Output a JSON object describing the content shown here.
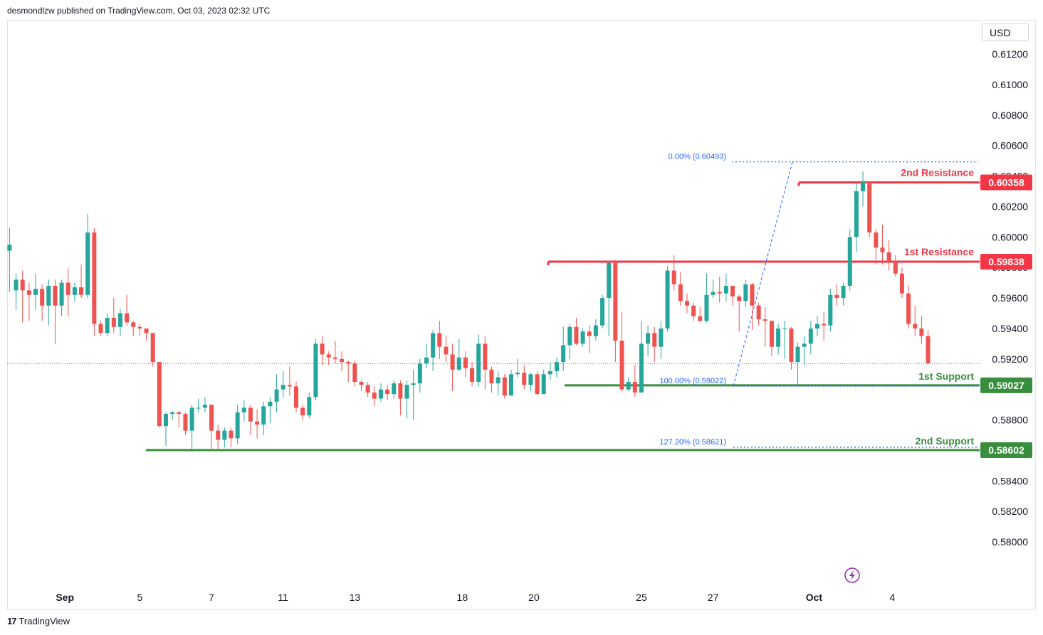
{
  "header": {
    "published": "desmondlzw published on TradingView.com, Oct 03, 2023 02:32 UTC"
  },
  "footer": {
    "brand": "TradingView",
    "logo_glyph": "17"
  },
  "currency": "USD",
  "colors": {
    "up": "#26a69a",
    "down": "#ef5350",
    "resistance": "#f23645",
    "support": "#388e3c",
    "fib": "#2962ff",
    "current": "#f23645"
  },
  "chart_data": {
    "type": "candlestick",
    "title": "",
    "xlabel": "",
    "ylabel": "",
    "ylim": [
      0.5787,
      0.6127
    ],
    "grid": false,
    "y_ticks": [
      "0.61200",
      "0.61000",
      "0.60800",
      "0.60600",
      "0.60400",
      "0.60200",
      "0.60000",
      "0.59800",
      "0.59600",
      "0.59400",
      "0.59200",
      "0.59000",
      "0.58800",
      "0.58600",
      "0.58400",
      "0.58200",
      "0.58000"
    ],
    "x_ticks": [
      {
        "label": "Sep",
        "bar": 8.5,
        "bold": true
      },
      {
        "label": "5",
        "bar": 20
      },
      {
        "label": "7",
        "bar": 31
      },
      {
        "label": "11",
        "bar": 42
      },
      {
        "label": "13",
        "bar": 53
      },
      {
        "label": "18",
        "bar": 69.5
      },
      {
        "label": "20",
        "bar": 80.5
      },
      {
        "label": "25",
        "bar": 97
      },
      {
        "label": "27",
        "bar": 108
      },
      {
        "label": "Oct",
        "bar": 123.5,
        "bold": true
      },
      {
        "label": "4",
        "bar": 135.5
      }
    ],
    "current_price": 0.5917,
    "candles": [
      [
        0.5991,
        0.5995,
        0.6006,
        0.5964
      ],
      [
        0.5965,
        0.5972,
        0.5976,
        0.5952
      ],
      [
        0.5972,
        0.5965,
        0.5978,
        0.5944
      ],
      [
        0.5965,
        0.5962,
        0.597,
        0.5945
      ],
      [
        0.5962,
        0.5966,
        0.5976,
        0.5952
      ],
      [
        0.5966,
        0.5955,
        0.5969,
        0.5945
      ],
      [
        0.5955,
        0.5968,
        0.5972,
        0.5942
      ],
      [
        0.5968,
        0.5955,
        0.5972,
        0.593
      ],
      [
        0.5955,
        0.597,
        0.5972,
        0.5948
      ],
      [
        0.597,
        0.5962,
        0.598,
        0.5948
      ],
      [
        0.5962,
        0.5967,
        0.597,
        0.5958
      ],
      [
        0.5967,
        0.5962,
        0.5982,
        0.596
      ],
      [
        0.5962,
        0.6003,
        0.6015,
        0.596
      ],
      [
        0.6003,
        0.5943,
        0.6006,
        0.5935
      ],
      [
        0.5943,
        0.5937,
        0.5945,
        0.5935
      ],
      [
        0.5937,
        0.5947,
        0.595,
        0.5935
      ],
      [
        0.5947,
        0.5941,
        0.596,
        0.5937
      ],
      [
        0.5941,
        0.595,
        0.5953,
        0.5935
      ],
      [
        0.595,
        0.5944,
        0.5962,
        0.5942
      ],
      [
        0.5944,
        0.5941,
        0.5945,
        0.5935
      ],
      [
        0.5941,
        0.594,
        0.5943,
        0.5935
      ],
      [
        0.594,
        0.5937,
        0.594,
        0.5932
      ],
      [
        0.5937,
        0.5918,
        0.5937,
        0.5915
      ],
      [
        0.5918,
        0.5876,
        0.5918,
        0.5875
      ],
      [
        0.5876,
        0.5884,
        0.5885,
        0.5863
      ],
      [
        0.5884,
        0.5885,
        0.5886,
        0.588
      ],
      [
        0.5885,
        0.5884,
        0.5886,
        0.5875
      ],
      [
        0.5884,
        0.5873,
        0.5885,
        0.587
      ],
      [
        0.5873,
        0.5888,
        0.589,
        0.5861
      ],
      [
        0.5888,
        0.5888,
        0.5894,
        0.5885
      ],
      [
        0.5888,
        0.589,
        0.5895,
        0.5885
      ],
      [
        0.589,
        0.5873,
        0.589,
        0.586
      ],
      [
        0.5873,
        0.5867,
        0.5877,
        0.5861
      ],
      [
        0.5867,
        0.5873,
        0.5875,
        0.5862
      ],
      [
        0.5873,
        0.5868,
        0.5875,
        0.5862
      ],
      [
        0.5868,
        0.5885,
        0.589,
        0.5864
      ],
      [
        0.5885,
        0.5888,
        0.5893,
        0.5879
      ],
      [
        0.5888,
        0.5879,
        0.589,
        0.587
      ],
      [
        0.5879,
        0.5877,
        0.5887,
        0.5868
      ],
      [
        0.5877,
        0.5889,
        0.5892,
        0.587
      ],
      [
        0.5889,
        0.5892,
        0.5895,
        0.5878
      ],
      [
        0.5892,
        0.59,
        0.591,
        0.5885
      ],
      [
        0.59,
        0.5903,
        0.5912,
        0.5895
      ],
      [
        0.5903,
        0.5902,
        0.5915,
        0.5896
      ],
      [
        0.5902,
        0.5888,
        0.5905,
        0.5885
      ],
      [
        0.5888,
        0.5883,
        0.589,
        0.588
      ],
      [
        0.5883,
        0.5895,
        0.5898,
        0.5881
      ],
      [
        0.5895,
        0.593,
        0.5933,
        0.5893
      ],
      [
        0.593,
        0.5923,
        0.5935,
        0.5916
      ],
      [
        0.5923,
        0.5921,
        0.5925,
        0.5916
      ],
      [
        0.5921,
        0.592,
        0.5932,
        0.5917
      ],
      [
        0.592,
        0.5918,
        0.5925,
        0.5912
      ],
      [
        0.5918,
        0.5917,
        0.5919,
        0.5905
      ],
      [
        0.5917,
        0.5905,
        0.5919,
        0.5902
      ],
      [
        0.5905,
        0.5903,
        0.5906,
        0.5899
      ],
      [
        0.5903,
        0.5898,
        0.5905,
        0.5895
      ],
      [
        0.5898,
        0.5894,
        0.5902,
        0.5889
      ],
      [
        0.5894,
        0.59,
        0.5904,
        0.5892
      ],
      [
        0.59,
        0.5897,
        0.5903,
        0.5893
      ],
      [
        0.5897,
        0.5904,
        0.5906,
        0.5894
      ],
      [
        0.5904,
        0.5894,
        0.5906,
        0.5883
      ],
      [
        0.5894,
        0.5903,
        0.5906,
        0.5881
      ],
      [
        0.5903,
        0.5904,
        0.5913,
        0.588
      ],
      [
        0.5904,
        0.5917,
        0.592,
        0.5898
      ],
      [
        0.5917,
        0.5921,
        0.593,
        0.5914
      ],
      [
        0.5921,
        0.5937,
        0.5939,
        0.5912
      ],
      [
        0.5937,
        0.5928,
        0.5945,
        0.592
      ],
      [
        0.5928,
        0.5923,
        0.5935,
        0.5918
      ],
      [
        0.5923,
        0.5913,
        0.593,
        0.5899
      ],
      [
        0.5913,
        0.5921,
        0.5933,
        0.5912
      ],
      [
        0.5921,
        0.5914,
        0.5925,
        0.5908
      ],
      [
        0.5914,
        0.5905,
        0.5918,
        0.5902
      ],
      [
        0.5905,
        0.593,
        0.5936,
        0.5902
      ],
      [
        0.593,
        0.5913,
        0.5935,
        0.59
      ],
      [
        0.5913,
        0.5904,
        0.5915,
        0.5898
      ],
      [
        0.5904,
        0.5908,
        0.5912,
        0.5896
      ],
      [
        0.5908,
        0.5896,
        0.591,
        0.5894
      ],
      [
        0.5896,
        0.591,
        0.5913,
        0.5896
      ],
      [
        0.591,
        0.5911,
        0.592,
        0.5908
      ],
      [
        0.5911,
        0.5903,
        0.5916,
        0.59
      ],
      [
        0.5903,
        0.591,
        0.5911,
        0.5899
      ],
      [
        0.591,
        0.5897,
        0.5912,
        0.5896
      ],
      [
        0.5897,
        0.591,
        0.5913,
        0.5897
      ],
      [
        0.591,
        0.5912,
        0.5918,
        0.5906
      ],
      [
        0.5912,
        0.5918,
        0.5921,
        0.5908
      ],
      [
        0.5918,
        0.5929,
        0.5941,
        0.5912
      ],
      [
        0.5929,
        0.5941,
        0.5943,
        0.592
      ],
      [
        0.5941,
        0.593,
        0.5947,
        0.5929
      ],
      [
        0.593,
        0.5938,
        0.594,
        0.5928
      ],
      [
        0.5938,
        0.5935,
        0.5942,
        0.5924
      ],
      [
        0.5935,
        0.5942,
        0.5946,
        0.5932
      ],
      [
        0.5942,
        0.596,
        0.5962,
        0.594
      ],
      [
        0.596,
        0.5983,
        0.5984,
        0.5935
      ],
      [
        0.5983,
        0.5932,
        0.5985,
        0.5918
      ],
      [
        0.5932,
        0.59,
        0.5951,
        0.5898
      ],
      [
        0.59,
        0.5905,
        0.5908,
        0.5899
      ],
      [
        0.5905,
        0.5898,
        0.5916,
        0.5895
      ],
      [
        0.5898,
        0.593,
        0.5945,
        0.59
      ],
      [
        0.593,
        0.5937,
        0.5942,
        0.5922
      ],
      [
        0.5937,
        0.5928,
        0.5941,
        0.5918
      ],
      [
        0.5928,
        0.594,
        0.5945,
        0.592
      ],
      [
        0.594,
        0.5978,
        0.5981,
        0.5938
      ],
      [
        0.5978,
        0.5969,
        0.5988,
        0.5965
      ],
      [
        0.5969,
        0.5958,
        0.5977,
        0.5955
      ],
      [
        0.5958,
        0.5955,
        0.5963,
        0.595
      ],
      [
        0.5955,
        0.5948,
        0.5957,
        0.5945
      ],
      [
        0.5948,
        0.5945,
        0.5954,
        0.5944
      ],
      [
        0.5945,
        0.5962,
        0.5976,
        0.5944
      ],
      [
        0.5962,
        0.5964,
        0.5972,
        0.596
      ],
      [
        0.5964,
        0.5963,
        0.5974,
        0.5957
      ],
      [
        0.5963,
        0.5968,
        0.5976,
        0.5958
      ],
      [
        0.5968,
        0.5961,
        0.5968,
        0.5955
      ],
      [
        0.5961,
        0.5958,
        0.5962,
        0.5938
      ],
      [
        0.5958,
        0.5969,
        0.5972,
        0.5954
      ],
      [
        0.5969,
        0.5955,
        0.597,
        0.5939
      ],
      [
        0.5955,
        0.5946,
        0.5957,
        0.5942
      ],
      [
        0.5946,
        0.5945,
        0.5954,
        0.5928
      ],
      [
        0.5945,
        0.5928,
        0.5945,
        0.5922
      ],
      [
        0.5928,
        0.594,
        0.5943,
        0.5923
      ],
      [
        0.594,
        0.594,
        0.5945,
        0.592
      ],
      [
        0.594,
        0.5918,
        0.5941,
        0.5913
      ],
      [
        0.5918,
        0.5928,
        0.5931,
        0.5902
      ],
      [
        0.5928,
        0.593,
        0.5935,
        0.5916
      ],
      [
        0.593,
        0.594,
        0.5945,
        0.5923
      ],
      [
        0.594,
        0.5943,
        0.5948,
        0.5935
      ],
      [
        0.5943,
        0.5942,
        0.5951,
        0.5932
      ],
      [
        0.5942,
        0.5962,
        0.5966,
        0.5938
      ],
      [
        0.5962,
        0.596,
        0.5969,
        0.5955
      ],
      [
        0.596,
        0.5968,
        0.597,
        0.5955
      ],
      [
        0.5968,
        0.6,
        0.6005,
        0.5965
      ],
      [
        0.6,
        0.603,
        0.6035,
        0.599
      ],
      [
        0.603,
        0.6036,
        0.6043,
        0.602
      ],
      [
        0.6036,
        0.6003,
        0.6036,
        0.6
      ],
      [
        0.6003,
        0.5993,
        0.6005,
        0.5982
      ],
      [
        0.5993,
        0.599,
        0.6008,
        0.5982
      ],
      [
        0.599,
        0.5983,
        0.5998,
        0.5978
      ],
      [
        0.5983,
        0.5976,
        0.5988,
        0.5974
      ],
      [
        0.5976,
        0.5963,
        0.598,
        0.596
      ],
      [
        0.5963,
        0.5943,
        0.5968,
        0.594
      ],
      [
        0.5943,
        0.594,
        0.5955,
        0.5935
      ],
      [
        0.594,
        0.5935,
        0.5948,
        0.593
      ],
      [
        0.5935,
        0.5917,
        0.5939,
        0.5917
      ]
    ],
    "levels": [
      {
        "name": "2nd Resistance",
        "value": 0.60358,
        "label": "0.60358",
        "type": "resistance"
      },
      {
        "name": "1st Resistance",
        "value": 0.59838,
        "label": "0.59838",
        "type": "resistance"
      },
      {
        "name": "1st Support",
        "value": 0.59027,
        "label": "0.59027",
        "type": "support"
      },
      {
        "name": "2nd Support",
        "value": 0.58602,
        "label": "0.58602",
        "type": "support"
      }
    ],
    "fib_levels": [
      {
        "label": "0.00% (0.60493)",
        "value": 0.60493
      },
      {
        "label": "100.00% (0.59022)",
        "value": 0.59022
      },
      {
        "label": "127.20% (0.58621)",
        "value": 0.58621
      }
    ]
  }
}
